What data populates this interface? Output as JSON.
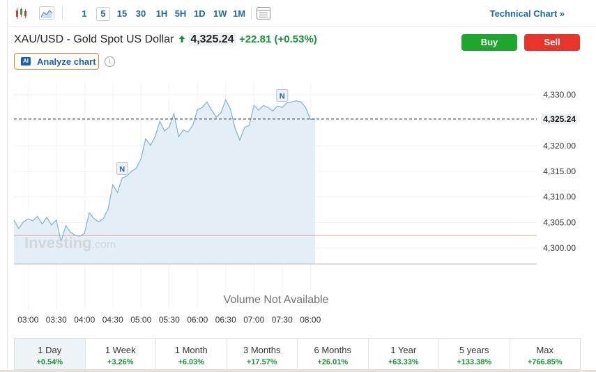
{
  "toolbar": {
    "timeframes": [
      "1",
      "5",
      "15",
      "30",
      "1H",
      "5H",
      "1D",
      "1W",
      "1M"
    ],
    "active_timeframe": "5",
    "technical_chart": "Technical Chart »"
  },
  "header": {
    "instrument": "XAU/USD - Gold Spot US Dollar",
    "price": "4,325.24",
    "change": "+22.81 (+0.53%)",
    "buy_label": "Buy",
    "sell_label": "Sell",
    "analyze_label": "Analyze chart",
    "ai_badge": "AI",
    "info_glyph": "i"
  },
  "colors": {
    "buy": "#1ea62e",
    "sell": "#e8352b",
    "line": "#7bb1d8",
    "fill": "#e4eef6",
    "up": "#1a8f3a",
    "accent": "#1b6ba4"
  },
  "watermark": {
    "brand": "Investing",
    "suffix": ".com"
  },
  "volume_text": "Volume Not Available",
  "chart_data": {
    "type": "area",
    "x": [
      "02:45",
      "02:50",
      "02:55",
      "03:00",
      "03:05",
      "03:10",
      "03:15",
      "03:20",
      "03:25",
      "03:30",
      "03:35",
      "03:40",
      "03:45",
      "03:50",
      "03:55",
      "04:00",
      "04:05",
      "04:10",
      "04:15",
      "04:20",
      "04:25",
      "04:30",
      "04:35",
      "04:40",
      "04:45",
      "04:50",
      "04:55",
      "05:00",
      "05:05",
      "05:10",
      "05:15",
      "05:20",
      "05:25",
      "05:30",
      "05:35",
      "05:40",
      "05:45",
      "05:50",
      "05:55",
      "06:00",
      "06:05",
      "06:10",
      "06:15",
      "06:20",
      "06:25",
      "06:30",
      "06:35",
      "06:40",
      "06:45",
      "06:50",
      "06:55",
      "07:00",
      "07:05",
      "07:10",
      "07:15",
      "07:20",
      "07:25",
      "07:30",
      "07:35",
      "07:40",
      "07:45",
      "07:50",
      "07:55",
      "08:00",
      "08:05"
    ],
    "values": [
      4305.5,
      4303.8,
      4305.1,
      4305.7,
      4305.3,
      4306.2,
      4304.7,
      4306.0,
      4304.5,
      4305.5,
      4301.2,
      4304.4,
      4303.1,
      4302.5,
      4302.3,
      4302.9,
      4306.9,
      4305.8,
      4305.1,
      4305.8,
      4307.6,
      4312.4,
      4310.9,
      4313.7,
      4314.1,
      4315.0,
      4315.6,
      4317.5,
      4321.4,
      4320.1,
      4321.8,
      4324.8,
      4322.9,
      4323.7,
      4326.3,
      4321.8,
      4323.1,
      4322.7,
      4324.0,
      4327.1,
      4327.5,
      4328.6,
      4327.0,
      4325.6,
      4326.5,
      4329.0,
      4327.2,
      4323.4,
      4321.1,
      4323.6,
      4324.0,
      4327.9,
      4327.0,
      4327.9,
      4327.5,
      4326.8,
      4327.8,
      4327.5,
      4328.4,
      4328.6,
      4328.8,
      4328.6,
      4327.5,
      4325.2,
      4325.24
    ],
    "x_tick_labels": [
      "03:00",
      "03:30",
      "04:00",
      "04:30",
      "05:00",
      "05:30",
      "06:00",
      "06:30",
      "07:00",
      "07:30",
      "08:00"
    ],
    "y_tick_labels": [
      "4,330.00",
      "4,325.00",
      "4,320.00",
      "4,315.00",
      "4,310.00",
      "4,305.00",
      "4,300.00"
    ],
    "y_ticks": [
      4330,
      4325,
      4320,
      4315,
      4310,
      4305,
      4300
    ],
    "ylim": [
      4297.0,
      4332.0
    ],
    "reference_price": 4302.43,
    "last_price": 4325.24,
    "last_price_label": "4,325.24",
    "news_marker_label": "N",
    "news_markers": [
      {
        "x": "04:40",
        "y": 4315.5
      },
      {
        "x": "07:30",
        "y": 4329.8
      }
    ],
    "grid": true,
    "volume": "not available"
  },
  "periods": [
    {
      "label": "1 Day",
      "change": "+0.54%"
    },
    {
      "label": "1 Week",
      "change": "+3.26%"
    },
    {
      "label": "1 Month",
      "change": "+6.03%"
    },
    {
      "label": "3 Months",
      "change": "+17.57%"
    },
    {
      "label": "6 Months",
      "change": "+26.01%"
    },
    {
      "label": "1 Year",
      "change": "+63.33%"
    },
    {
      "label": "5 years",
      "change": "+133.38%"
    },
    {
      "label": "Max",
      "change": "+766.85%"
    }
  ]
}
